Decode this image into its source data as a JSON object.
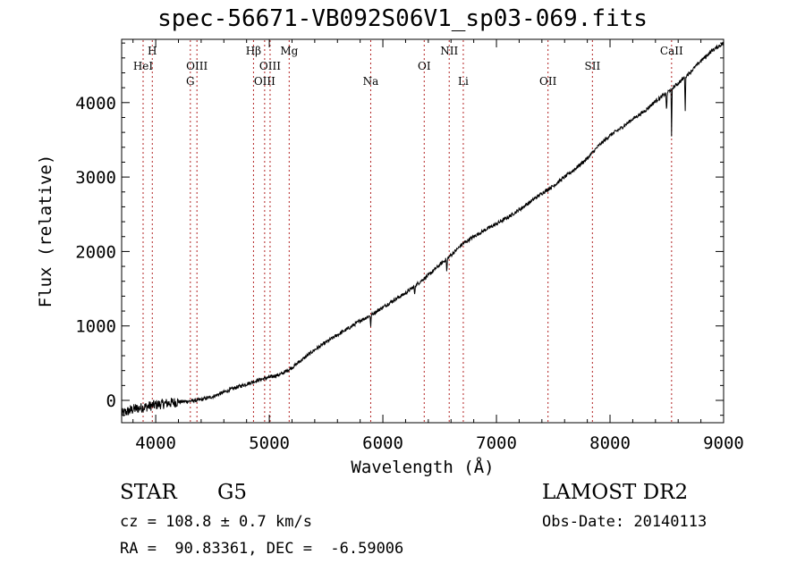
{
  "title": "spec-56671-VB092S06V1_sp03-069.fits",
  "info": {
    "object_class": "STAR",
    "subclass": "G5",
    "survey": "LAMOST DR2",
    "cz": "cz = 108.8 ± 0.7 km/s",
    "obs_date": "Obs-Date: 20140113",
    "ra_dec": "RA =  90.83361, DEC =  -6.59006"
  },
  "chart_data": {
    "type": "line",
    "title": "spec-56671-VB092S06V1_sp03-069.fits",
    "xlabel": "Wavelength (Å)",
    "ylabel": "Flux (relative)",
    "xlim": [
      3700,
      9000
    ],
    "ylim": [
      -300,
      4850
    ],
    "xticks": [
      4000,
      5000,
      6000,
      7000,
      8000,
      9000
    ],
    "yticks": [
      0,
      1000,
      2000,
      3000,
      4000
    ],
    "grid": false,
    "line_color": "#000000",
    "marker_color": "#b22222",
    "spectral_lines": [
      {
        "label": "HeI",
        "wavelength": 3889,
        "row": 2
      },
      {
        "label": "H",
        "wavelength": 3970,
        "row": 1
      },
      {
        "label": "OIII",
        "wavelength": 4363,
        "row": 2
      },
      {
        "label": "G",
        "wavelength": 4305,
        "row": 3
      },
      {
        "label": "Hβ",
        "wavelength": 4861,
        "row": 1
      },
      {
        "label": "OIII",
        "wavelength": 4959,
        "row": 3
      },
      {
        "label": "OIII",
        "wavelength": 5007,
        "row": 2
      },
      {
        "label": "Mg",
        "wavelength": 5175,
        "row": 1
      },
      {
        "label": "Na",
        "wavelength": 5893,
        "row": 3
      },
      {
        "label": "OI",
        "wavelength": 6364,
        "row": 2
      },
      {
        "label": "NII",
        "wavelength": 6584,
        "row": 1
      },
      {
        "label": "Li",
        "wavelength": 6708,
        "row": 3
      },
      {
        "label": "OII",
        "wavelength": 7454,
        "row": 3
      },
      {
        "label": "SII",
        "wavelength": 7845,
        "row": 2
      },
      {
        "label": "CaII",
        "wavelength": 8542,
        "row": 1
      }
    ],
    "series": [
      {
        "x": [
          3700,
          3800,
          3900,
          4000,
          4100,
          4200,
          4300,
          4400,
          4500,
          4600,
          4700,
          4800,
          4900,
          5000,
          5100,
          5200,
          5300,
          5400,
          5500,
          5600,
          5700,
          5800,
          5900,
          6000,
          6100,
          6200,
          6300,
          6400,
          6500,
          6600,
          6700,
          6800,
          6900,
          7000,
          7100,
          7200,
          7300,
          7400,
          7500,
          7600,
          7700,
          7800,
          7900,
          8000,
          8100,
          8200,
          8300,
          8400,
          8500,
          8600,
          8700,
          8800,
          8900,
          9000
        ],
        "y": [
          -180,
          -120,
          -90,
          -60,
          -40,
          -20,
          -10,
          10,
          50,
          110,
          170,
          220,
          270,
          310,
          350,
          440,
          560,
          680,
          780,
          880,
          970,
          1070,
          1150,
          1250,
          1350,
          1440,
          1560,
          1680,
          1820,
          1950,
          2100,
          2200,
          2290,
          2370,
          2460,
          2560,
          2670,
          2780,
          2880,
          3000,
          3120,
          3250,
          3420,
          3560,
          3660,
          3780,
          3880,
          4020,
          4130,
          4260,
          4400,
          4560,
          4700,
          4800
        ]
      }
    ],
    "absorption_features": [
      {
        "x": 5893,
        "depth": 160
      },
      {
        "x": 6280,
        "depth": 130
      },
      {
        "x": 6563,
        "depth": 200
      },
      {
        "x": 8498,
        "depth": 280
      },
      {
        "x": 8542,
        "depth": 650
      },
      {
        "x": 8662,
        "depth": 450
      }
    ]
  }
}
